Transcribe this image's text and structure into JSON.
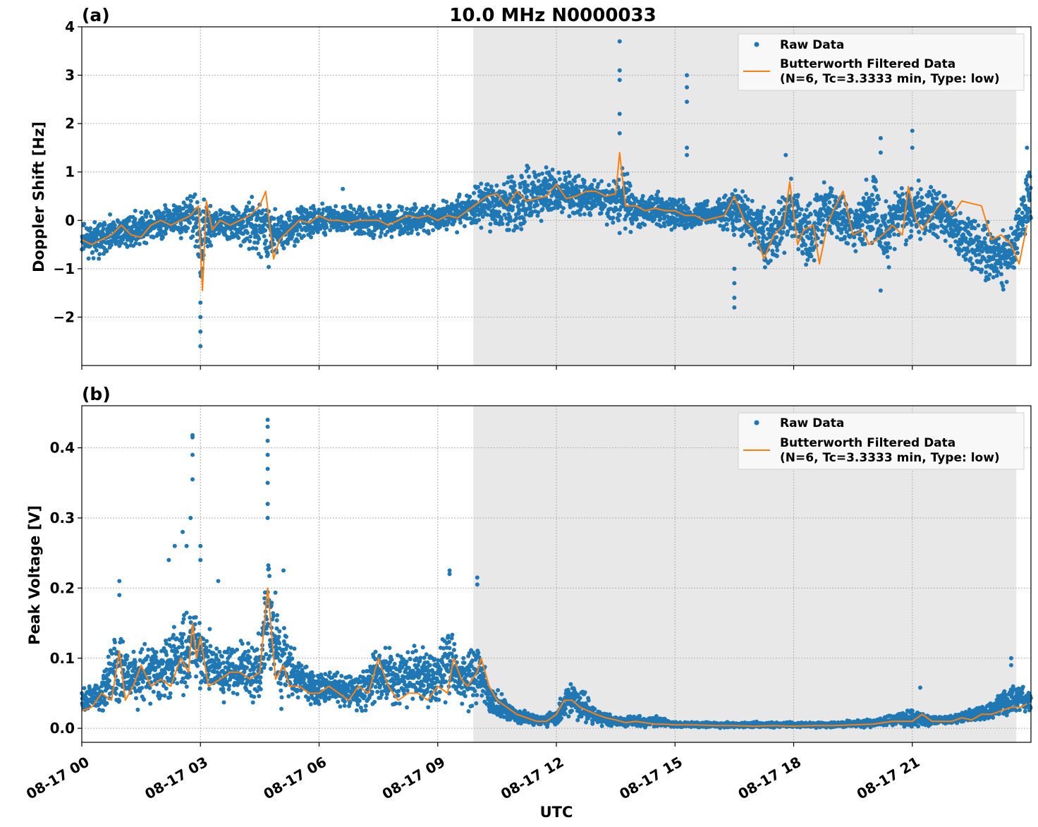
{
  "figure": {
    "title": "10.0 MHz N0000033",
    "xlabel": "UTC",
    "xlim_hours": [
      0,
      24
    ],
    "xtick_hours": [
      0,
      3,
      6,
      9,
      12,
      15,
      18,
      21
    ],
    "xtick_labels": [
      "08-17 00",
      "08-17 03",
      "08-17 06",
      "08-17 09",
      "08-17 12",
      "08-17 15",
      "08-17 18",
      "08-17 21"
    ],
    "shaded_interval_hours": [
      9.9,
      23.63
    ],
    "colors": {
      "raw": "#1f77b4",
      "filtered": "#ff7f0e",
      "shade": "#e8e8e8",
      "grid": "#b0b0b0"
    }
  },
  "legend": {
    "raw_label": "Raw Data",
    "filtered_label_1": "Butterworth Filtered Data",
    "filtered_label_2": "(N=6, Tc=3.3333 min, Type: low)",
    "placement": "top-right"
  },
  "chart_data": [
    {
      "type": "scatter",
      "panel": "(a)",
      "ylabel": "Doppler Shift [Hz]",
      "ylim": [
        -3.0,
        4.0
      ],
      "yticks": [
        -2,
        -1,
        0,
        1,
        2,
        3,
        4
      ],
      "ytick_labels": [
        "−2",
        "−1",
        "0",
        "1",
        "2",
        "3",
        "4"
      ],
      "grid": true,
      "series": [
        {
          "name": "Raw Data",
          "kind": "scatter",
          "envelope_x": [
            0,
            0.5,
            1,
            1.5,
            2,
            2.5,
            2.9,
            3.0,
            3.2,
            3.5,
            4.0,
            4.5,
            4.7,
            5.0,
            5.5,
            6,
            7,
            8,
            9,
            9.5,
            10,
            10.5,
            11,
            11.5,
            12,
            12.5,
            13,
            13.5,
            13.7,
            14,
            14.5,
            15,
            15.5,
            16,
            16.5,
            17,
            17.3,
            17.7,
            18,
            18.3,
            18.7,
            19,
            19.5,
            20,
            20.3,
            20.7,
            21,
            21.3,
            21.7,
            22,
            22.5,
            23,
            23.3,
            23.6,
            23.9
          ],
          "envelope_upper": [
            0.05,
            0.1,
            0.2,
            0.3,
            0.4,
            0.6,
            0.8,
            0.7,
            0.4,
            0.3,
            0.4,
            0.7,
            0.6,
            0.35,
            0.35,
            0.45,
            0.4,
            0.4,
            0.45,
            0.6,
            0.9,
            1.1,
            1.2,
            1.3,
            1.2,
            1.1,
            1.0,
            0.9,
            1.4,
            0.7,
            0.65,
            0.6,
            0.5,
            0.45,
            0.8,
            0.6,
            0.5,
            0.7,
            1.1,
            0.5,
            1.0,
            0.9,
            0.4,
            1.2,
            0.6,
            1.0,
            1.0,
            0.9,
            0.9,
            0.5,
            0.2,
            0.1,
            0.0,
            0.3,
            1.2
          ],
          "envelope_lower": [
            -0.8,
            -0.9,
            -0.7,
            -0.6,
            -0.55,
            -0.5,
            -0.7,
            -1.8,
            -0.7,
            -0.5,
            -0.6,
            -0.9,
            -1.1,
            -0.8,
            -0.5,
            -0.4,
            -0.4,
            -0.5,
            -0.3,
            -0.3,
            -0.2,
            -0.4,
            -0.6,
            -0.3,
            0.0,
            -0.05,
            -0.1,
            -0.2,
            -0.5,
            -0.3,
            -0.2,
            -0.3,
            -0.3,
            -0.2,
            -0.4,
            -0.7,
            -1.3,
            -0.9,
            -0.6,
            -1.4,
            -0.7,
            -0.5,
            -0.7,
            -0.9,
            -1.2,
            -0.6,
            -0.6,
            -0.7,
            -0.4,
            -0.8,
            -1.3,
            -1.5,
            -1.6,
            -1.1,
            -0.4
          ],
          "outliers": [
            [
              3.0,
              -2.6
            ],
            [
              3.0,
              -2.3
            ],
            [
              3.0,
              -2.0
            ],
            [
              3.0,
              -1.7
            ],
            [
              6.6,
              0.65
            ],
            [
              13.6,
              3.7
            ],
            [
              13.6,
              3.1
            ],
            [
              13.6,
              2.9
            ],
            [
              13.6,
              2.2
            ],
            [
              13.6,
              1.8
            ],
            [
              15.3,
              3.0
            ],
            [
              15.3,
              2.75
            ],
            [
              15.3,
              2.45
            ],
            [
              15.3,
              1.5
            ],
            [
              15.3,
              1.35
            ],
            [
              16.5,
              -1.0
            ],
            [
              16.5,
              -1.3
            ],
            [
              16.5,
              -1.6
            ],
            [
              16.5,
              -1.8
            ],
            [
              17.8,
              1.35
            ],
            [
              20.2,
              1.7
            ],
            [
              20.2,
              1.4
            ],
            [
              20.2,
              -1.45
            ],
            [
              21.0,
              1.85
            ],
            [
              21.0,
              1.5
            ],
            [
              23.9,
              1.5
            ]
          ]
        },
        {
          "name": "Butterworth Filtered Data",
          "kind": "line",
          "x": [
            0,
            0.25,
            0.5,
            0.75,
            1.0,
            1.25,
            1.5,
            1.75,
            2.0,
            2.25,
            2.5,
            2.75,
            2.95,
            3.05,
            3.15,
            3.3,
            3.5,
            3.75,
            4.0,
            4.25,
            4.5,
            4.65,
            4.85,
            5.0,
            5.25,
            5.5,
            5.75,
            6.0,
            6.25,
            6.5,
            6.75,
            7.0,
            7.25,
            7.5,
            7.75,
            8.0,
            8.25,
            8.5,
            8.75,
            9.0,
            9.25,
            9.5,
            9.75,
            10.0,
            10.25,
            10.5,
            10.75,
            11.0,
            11.25,
            11.5,
            11.75,
            12.0,
            12.25,
            12.5,
            12.75,
            13.0,
            13.25,
            13.5,
            13.6,
            13.75,
            14.0,
            14.25,
            14.5,
            14.75,
            15.0,
            15.25,
            15.5,
            15.75,
            16.0,
            16.25,
            16.5,
            16.75,
            17.0,
            17.25,
            17.5,
            17.75,
            17.9,
            18.1,
            18.25,
            18.5,
            18.65,
            18.85,
            19.0,
            19.25,
            19.5,
            19.75,
            19.9,
            20.1,
            20.25,
            20.5,
            20.75,
            20.9,
            21.1,
            21.25,
            21.5,
            21.75,
            22.0,
            22.25,
            22.5,
            22.75,
            23.0,
            23.25,
            23.5,
            23.7,
            23.9
          ],
          "y": [
            -0.4,
            -0.5,
            -0.4,
            -0.3,
            -0.1,
            -0.3,
            -0.35,
            -0.1,
            0.0,
            -0.1,
            0.0,
            0.1,
            0.3,
            -1.45,
            0.4,
            -0.2,
            0.0,
            -0.1,
            0.0,
            0.1,
            0.3,
            0.6,
            -0.8,
            -0.4,
            -0.2,
            0.0,
            -0.05,
            0.1,
            0.0,
            0.0,
            -0.05,
            0.0,
            0.0,
            0.0,
            -0.1,
            0.0,
            0.1,
            0.05,
            0.1,
            0.0,
            0.1,
            0.05,
            0.2,
            0.35,
            0.5,
            0.55,
            0.3,
            0.6,
            0.4,
            0.45,
            0.5,
            0.75,
            0.45,
            0.5,
            0.6,
            0.6,
            0.5,
            0.55,
            1.4,
            0.3,
            0.3,
            0.2,
            0.25,
            0.2,
            0.2,
            0.1,
            0.1,
            0.0,
            0.05,
            0.1,
            0.5,
            0.0,
            -0.2,
            -0.8,
            -0.3,
            -0.1,
            0.8,
            -0.5,
            -0.2,
            -0.1,
            -0.9,
            -0.1,
            0.2,
            0.6,
            -0.3,
            -0.2,
            -0.5,
            -0.4,
            -0.3,
            -0.1,
            -0.3,
            0.7,
            0.0,
            -0.2,
            0.1,
            0.4,
            0.1,
            0.4,
            0.35,
            0.3,
            -0.4,
            -0.3,
            -0.5,
            -0.9,
            -0.1
          ]
        }
      ]
    },
    {
      "type": "scatter",
      "panel": "(b)",
      "ylabel": "Peak Voltage [V]",
      "ylim": [
        -0.02,
        0.46
      ],
      "yticks": [
        0.0,
        0.1,
        0.2,
        0.3,
        0.4
      ],
      "ytick_labels": [
        "0.0",
        "0.1",
        "0.2",
        "0.3",
        "0.4"
      ],
      "grid": true,
      "series": [
        {
          "name": "Raw Data",
          "kind": "scatter",
          "envelope_x": [
            0,
            0.5,
            0.9,
            1.2,
            1.5,
            2.0,
            2.3,
            2.8,
            3.0,
            3.5,
            4.0,
            4.5,
            4.7,
            5.0,
            5.5,
            6.0,
            6.5,
            7.0,
            7.5,
            8.0,
            8.5,
            9.0,
            9.3,
            9.6,
            10.0,
            10.3,
            10.5,
            11.0,
            11.5,
            12.0,
            12.3,
            12.7,
            13.0,
            13.5,
            14.0,
            14.5,
            15.0,
            16.0,
            17.0,
            18.0,
            19.0,
            20.0,
            21.0,
            21.5,
            22.0,
            22.5,
            23.0,
            23.5,
            23.9
          ],
          "envelope_upper": [
            0.06,
            0.08,
            0.17,
            0.12,
            0.13,
            0.14,
            0.16,
            0.2,
            0.18,
            0.12,
            0.14,
            0.14,
            0.3,
            0.18,
            0.11,
            0.09,
            0.09,
            0.08,
            0.14,
            0.12,
            0.14,
            0.12,
            0.17,
            0.12,
            0.15,
            0.07,
            0.06,
            0.03,
            0.02,
            0.03,
            0.08,
            0.06,
            0.03,
            0.02,
            0.02,
            0.02,
            0.01,
            0.01,
            0.01,
            0.01,
            0.01,
            0.015,
            0.03,
            0.02,
            0.02,
            0.03,
            0.04,
            0.07,
            0.06
          ],
          "envelope_lower": [
            0.015,
            0.02,
            0.025,
            0.025,
            0.025,
            0.025,
            0.03,
            0.03,
            0.03,
            0.03,
            0.03,
            0.03,
            0.03,
            0.025,
            0.025,
            0.025,
            0.02,
            0.02,
            0.02,
            0.02,
            0.015,
            0.02,
            0.02,
            0.02,
            0.02,
            0.015,
            0.01,
            0.005,
            0.003,
            0.0,
            0.005,
            0.005,
            0.003,
            0.0,
            0.0,
            0.0,
            0.0,
            0.0,
            0.0,
            0.0,
            0.0,
            0.0,
            0.0,
            0.003,
            0.005,
            0.008,
            0.01,
            0.015,
            0.015
          ],
          "outliers": [
            [
              0.95,
              0.21
            ],
            [
              0.95,
              0.19
            ],
            [
              2.2,
              0.24
            ],
            [
              2.35,
              0.26
            ],
            [
              2.55,
              0.28
            ],
            [
              2.65,
              0.26
            ],
            [
              2.75,
              0.3
            ],
            [
              2.8,
              0.355
            ],
            [
              2.8,
              0.39
            ],
            [
              2.8,
              0.415
            ],
            [
              2.8,
              0.418
            ],
            [
              3.0,
              0.26
            ],
            [
              3.0,
              0.24
            ],
            [
              3.45,
              0.21
            ],
            [
              4.7,
              0.44
            ],
            [
              4.7,
              0.43
            ],
            [
              4.7,
              0.41
            ],
            [
              4.7,
              0.39
            ],
            [
              4.7,
              0.37
            ],
            [
              4.7,
              0.35
            ],
            [
              4.7,
              0.32
            ],
            [
              4.7,
              0.3
            ],
            [
              5.1,
              0.225
            ],
            [
              9.3,
              0.225
            ],
            [
              9.3,
              0.22
            ],
            [
              10.0,
              0.215
            ],
            [
              10.0,
              0.205
            ],
            [
              21.2,
              0.058
            ],
            [
              23.5,
              0.1
            ],
            [
              23.5,
              0.09
            ]
          ]
        },
        {
          "name": "Butterworth Filtered Data",
          "kind": "line",
          "x": [
            0,
            0.25,
            0.5,
            0.75,
            0.95,
            1.1,
            1.3,
            1.5,
            1.75,
            2.0,
            2.25,
            2.5,
            2.7,
            2.8,
            2.9,
            3.0,
            3.2,
            3.5,
            3.75,
            4.0,
            4.25,
            4.5,
            4.7,
            4.9,
            5.1,
            5.25,
            5.5,
            5.75,
            6.0,
            6.25,
            6.5,
            6.75,
            7.0,
            7.25,
            7.5,
            7.75,
            8.0,
            8.25,
            8.5,
            8.75,
            9.0,
            9.25,
            9.4,
            9.6,
            9.75,
            10.0,
            10.1,
            10.3,
            10.5,
            10.75,
            11.0,
            11.25,
            11.5,
            11.75,
            12.0,
            12.2,
            12.4,
            12.6,
            12.8,
            13.0,
            13.25,
            13.5,
            13.75,
            14.0,
            14.25,
            14.5,
            14.75,
            15.0,
            15.5,
            16.0,
            16.5,
            17.0,
            17.5,
            18.0,
            18.5,
            19.0,
            19.5,
            20.0,
            20.5,
            21.0,
            21.25,
            21.5,
            22.0,
            22.25,
            22.5,
            22.75,
            23.0,
            23.25,
            23.5,
            23.75,
            23.9
          ],
          "y": [
            0.025,
            0.03,
            0.05,
            0.04,
            0.11,
            0.04,
            0.06,
            0.09,
            0.06,
            0.07,
            0.06,
            0.1,
            0.08,
            0.15,
            0.1,
            0.13,
            0.06,
            0.07,
            0.08,
            0.08,
            0.07,
            0.08,
            0.2,
            0.07,
            0.09,
            0.06,
            0.06,
            0.05,
            0.05,
            0.06,
            0.05,
            0.04,
            0.06,
            0.05,
            0.1,
            0.06,
            0.04,
            0.05,
            0.05,
            0.04,
            0.06,
            0.05,
            0.1,
            0.07,
            0.06,
            0.08,
            0.1,
            0.06,
            0.04,
            0.03,
            0.02,
            0.015,
            0.01,
            0.01,
            0.02,
            0.04,
            0.04,
            0.03,
            0.025,
            0.02,
            0.015,
            0.012,
            0.008,
            0.01,
            0.008,
            0.006,
            0.006,
            0.005,
            0.005,
            0.004,
            0.004,
            0.003,
            0.004,
            0.003,
            0.004,
            0.004,
            0.005,
            0.006,
            0.01,
            0.01,
            0.02,
            0.01,
            0.01,
            0.015,
            0.012,
            0.02,
            0.02,
            0.025,
            0.03,
            0.03,
            0.035
          ]
        }
      ]
    }
  ]
}
